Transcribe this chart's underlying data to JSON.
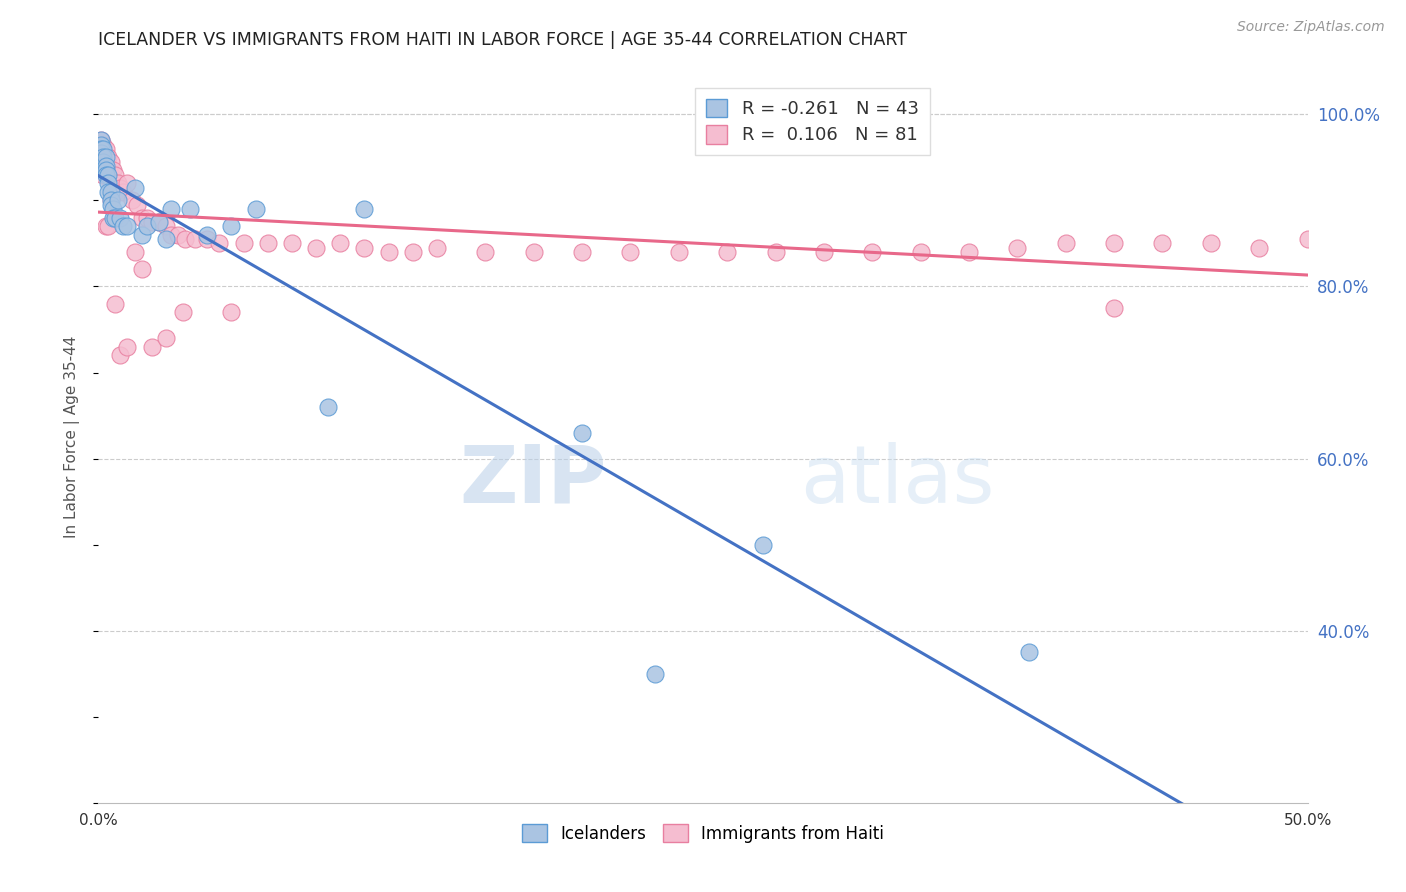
{
  "title": "ICELANDER VS IMMIGRANTS FROM HAITI IN LABOR FORCE | AGE 35-44 CORRELATION CHART",
  "source": "Source: ZipAtlas.com",
  "ylabel": "In Labor Force | Age 35-44",
  "xlim": [
    0.0,
    0.5
  ],
  "ylim": [
    0.2,
    1.05
  ],
  "xticks": [
    0.0,
    0.05,
    0.1,
    0.15,
    0.2,
    0.25,
    0.3,
    0.35,
    0.4,
    0.45,
    0.5
  ],
  "xticklabels": [
    "0.0%",
    "",
    "",
    "",
    "",
    "",
    "",
    "",
    "",
    "",
    "50.0%"
  ],
  "yticks_right": [
    0.4,
    0.6,
    0.8,
    1.0
  ],
  "ytick_right_labels": [
    "40.0%",
    "60.0%",
    "80.0%",
    "100.0%"
  ],
  "legend_R_icelanders": "-0.261",
  "legend_N_icelanders": "43",
  "legend_R_haiti": "0.106",
  "legend_N_haiti": "81",
  "icelander_color": "#aac4e2",
  "icelander_edge_color": "#5b9bd5",
  "haiti_color": "#f5bdd0",
  "haiti_edge_color": "#e87fa0",
  "trend_icelander_color": "#4472c4",
  "trend_haiti_color": "#e8688a",
  "watermark_zip": "ZIP",
  "watermark_atlas": "atlas",
  "icelanders_x": [
    0.001,
    0.001,
    0.001,
    0.001,
    0.001,
    0.001,
    0.002,
    0.002,
    0.002,
    0.002,
    0.003,
    0.003,
    0.003,
    0.003,
    0.004,
    0.004,
    0.004,
    0.005,
    0.005,
    0.005,
    0.006,
    0.006,
    0.007,
    0.008,
    0.009,
    0.01,
    0.012,
    0.015,
    0.018,
    0.02,
    0.025,
    0.028,
    0.03,
    0.038,
    0.045,
    0.055,
    0.065,
    0.095,
    0.11,
    0.2,
    0.23,
    0.275,
    0.385
  ],
  "icelanders_y": [
    0.97,
    0.965,
    0.96,
    0.955,
    0.945,
    0.94,
    0.96,
    0.95,
    0.945,
    0.935,
    0.95,
    0.94,
    0.935,
    0.93,
    0.93,
    0.92,
    0.91,
    0.91,
    0.9,
    0.895,
    0.89,
    0.88,
    0.88,
    0.9,
    0.88,
    0.87,
    0.87,
    0.915,
    0.86,
    0.87,
    0.875,
    0.855,
    0.89,
    0.89,
    0.86,
    0.87,
    0.89,
    0.66,
    0.89,
    0.63,
    0.35,
    0.5,
    0.375
  ],
  "haiti_x": [
    0.001,
    0.001,
    0.001,
    0.001,
    0.001,
    0.002,
    0.002,
    0.002,
    0.002,
    0.003,
    0.003,
    0.003,
    0.004,
    0.004,
    0.004,
    0.005,
    0.005,
    0.005,
    0.006,
    0.006,
    0.006,
    0.007,
    0.007,
    0.007,
    0.008,
    0.009,
    0.01,
    0.012,
    0.014,
    0.016,
    0.018,
    0.02,
    0.022,
    0.025,
    0.028,
    0.03,
    0.033,
    0.036,
    0.04,
    0.045,
    0.05,
    0.06,
    0.07,
    0.08,
    0.09,
    0.1,
    0.11,
    0.12,
    0.13,
    0.14,
    0.16,
    0.18,
    0.2,
    0.22,
    0.24,
    0.26,
    0.28,
    0.3,
    0.32,
    0.34,
    0.36,
    0.38,
    0.4,
    0.42,
    0.44,
    0.46,
    0.48,
    0.5,
    0.003,
    0.004,
    0.005,
    0.007,
    0.009,
    0.012,
    0.015,
    0.018,
    0.022,
    0.028,
    0.035,
    0.055,
    0.42
  ],
  "haiti_y": [
    0.97,
    0.96,
    0.955,
    0.945,
    0.935,
    0.965,
    0.955,
    0.945,
    0.93,
    0.96,
    0.95,
    0.935,
    0.95,
    0.94,
    0.93,
    0.945,
    0.93,
    0.92,
    0.935,
    0.92,
    0.91,
    0.93,
    0.92,
    0.91,
    0.92,
    0.915,
    0.91,
    0.92,
    0.9,
    0.895,
    0.88,
    0.88,
    0.875,
    0.875,
    0.87,
    0.86,
    0.86,
    0.855,
    0.855,
    0.855,
    0.85,
    0.85,
    0.85,
    0.85,
    0.845,
    0.85,
    0.845,
    0.84,
    0.84,
    0.845,
    0.84,
    0.84,
    0.84,
    0.84,
    0.84,
    0.84,
    0.84,
    0.84,
    0.84,
    0.84,
    0.84,
    0.845,
    0.85,
    0.85,
    0.85,
    0.85,
    0.845,
    0.855,
    0.87,
    0.87,
    0.9,
    0.78,
    0.72,
    0.73,
    0.84,
    0.82,
    0.73,
    0.74,
    0.77,
    0.77,
    0.775
  ]
}
